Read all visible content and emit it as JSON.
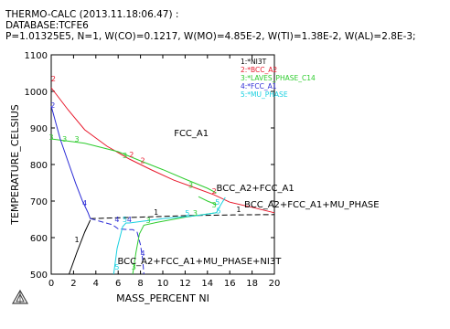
{
  "header": {
    "line1": "THERMO-CALC (2013.11.18:06.47) :",
    "line2": "DATABASE:TCFE6",
    "line3": "P=1.01325E5, N=1, W(CO)=0.1217, W(MO)=4.85E-2, W(TI)=1.38E-2, W(AL)=2.8E-3;"
  },
  "chart_data": {
    "type": "line",
    "xlabel": "MASS_PERCENT NI",
    "ylabel": "TEMPERATURE_CELSIUS",
    "xlim": [
      0,
      20
    ],
    "ylim": [
      500,
      1100
    ],
    "xticks": [
      0,
      2,
      4,
      6,
      8,
      10,
      12,
      14,
      16,
      18,
      20
    ],
    "yticks": [
      500,
      600,
      700,
      800,
      900,
      1000,
      1100
    ],
    "grid": false,
    "legend_position": "top-right",
    "legend": [
      {
        "label": "1:*NI3T",
        "color": "#000000"
      },
      {
        "label": "2:*BCC_A2",
        "color": "#e8192c"
      },
      {
        "label": "3:*LAVES_PHASE_C14",
        "color": "#2ecc2e"
      },
      {
        "label": "4:*FCC_A1",
        "color": "#2b2bd6"
      },
      {
        "label": "5:*MU_PHASE",
        "color": "#19d0e0"
      }
    ],
    "series": [
      {
        "name": "1:*NI3T",
        "color": "#000000",
        "dash": false,
        "points": [
          [
            1.6,
            500
          ],
          [
            2.3,
            560
          ],
          [
            3.0,
            615
          ],
          [
            3.5,
            648
          ]
        ]
      },
      {
        "name": "1:*NI3T",
        "color": "#000000",
        "dash": true,
        "points": [
          [
            3.5,
            652
          ],
          [
            8,
            656
          ],
          [
            12,
            660
          ],
          [
            16,
            662
          ],
          [
            20,
            663
          ]
        ]
      },
      {
        "name": "2:*BCC_A2",
        "color": "#e8192c",
        "dash": false,
        "points": [
          [
            0,
            1010
          ],
          [
            1.5,
            950
          ],
          [
            3,
            895
          ],
          [
            5,
            850
          ],
          [
            7,
            815
          ],
          [
            9,
            785
          ],
          [
            11,
            757
          ],
          [
            13,
            735
          ],
          [
            14.6,
            717
          ],
          [
            16,
            697
          ],
          [
            18,
            683
          ],
          [
            20,
            668
          ]
        ]
      },
      {
        "name": "3:*LAVES_PHASE_C14",
        "color": "#2ecc2e",
        "dash": false,
        "points": [
          [
            0,
            870
          ],
          [
            3,
            858
          ],
          [
            6,
            835
          ],
          [
            8,
            810
          ],
          [
            10,
            786
          ],
          [
            12,
            760
          ],
          [
            14,
            735
          ],
          [
            14.8,
            722
          ]
        ]
      },
      {
        "name": "3:*LAVES_PHASE_C14",
        "color": "#2ecc2e",
        "dash": false,
        "points": [
          [
            13.2,
            712
          ],
          [
            14.0,
            700
          ],
          [
            14.8,
            690
          ]
        ]
      },
      {
        "name": "3:*LAVES_PHASE_C14",
        "color": "#2ecc2e",
        "dash": false,
        "points": [
          [
            7.3,
            500
          ],
          [
            7.6,
            560
          ],
          [
            7.9,
            610
          ],
          [
            8.3,
            634
          ],
          [
            9.5,
            642
          ],
          [
            12,
            656
          ],
          [
            14.8,
            668
          ]
        ]
      },
      {
        "name": "4:*FCC_A1",
        "color": "#2b2bd6",
        "dash": false,
        "points": [
          [
            0,
            960
          ],
          [
            0.8,
            870
          ],
          [
            1.6,
            800
          ],
          [
            2.2,
            748
          ],
          [
            2.8,
            700
          ],
          [
            3.3,
            668
          ],
          [
            3.5,
            652
          ]
        ]
      },
      {
        "name": "4:*FCC_A1",
        "color": "#2b2bd6",
        "dash": true,
        "points": [
          [
            3.5,
            652
          ],
          [
            5.5,
            635
          ],
          [
            6,
            624
          ],
          [
            6.8,
            622
          ],
          [
            7.3,
            622
          ],
          [
            7.7,
            615
          ],
          [
            8,
            580
          ],
          [
            8.2,
            540
          ],
          [
            8.3,
            500
          ]
        ]
      },
      {
        "name": "5:*MU_PHASE",
        "color": "#19d0e0",
        "dash": false,
        "points": [
          [
            5.6,
            500
          ],
          [
            5.9,
            570
          ],
          [
            6.4,
            630
          ],
          [
            6.7,
            640
          ],
          [
            7.0,
            640
          ],
          [
            10,
            652
          ],
          [
            13,
            660
          ],
          [
            14.8,
            668
          ]
        ]
      },
      {
        "name": "5:*MU_PHASE",
        "color": "#19d0e0",
        "dash": false,
        "points": [
          [
            14.8,
            668
          ],
          [
            15.2,
            690
          ],
          [
            15.6,
            710
          ]
        ]
      }
    ],
    "curve_labels": [
      {
        "text": "2",
        "x": 0.2,
        "y": 1028,
        "color": "#e8192c"
      },
      {
        "text": "2",
        "x": 0.15,
        "y": 955,
        "color": "#2b2bd6"
      },
      {
        "text": "3",
        "x": 0.0,
        "y": 868,
        "color": "#2ecc2e"
      },
      {
        "text": "3",
        "x": 1.2,
        "y": 862,
        "color": "#2ecc2e"
      },
      {
        "text": "3",
        "x": 2.3,
        "y": 862,
        "color": "#2ecc2e"
      },
      {
        "text": "3",
        "x": 6.6,
        "y": 818,
        "color": "#2ecc2e"
      },
      {
        "text": "2",
        "x": 7.2,
        "y": 820,
        "color": "#e8192c"
      },
      {
        "text": "2",
        "x": 8.2,
        "y": 804,
        "color": "#e8192c"
      },
      {
        "text": "3",
        "x": 12.5,
        "y": 736,
        "color": "#2ecc2e"
      },
      {
        "text": "2",
        "x": 14.6,
        "y": 720,
        "color": "#e8192c"
      },
      {
        "text": "5",
        "x": 14.9,
        "y": 690,
        "color": "#19d0e0"
      },
      {
        "text": "3",
        "x": 14.6,
        "y": 683,
        "color": "#2ecc2e"
      },
      {
        "text": "1",
        "x": 16.8,
        "y": 670,
        "color": "#000000"
      },
      {
        "text": "5",
        "x": 15.0,
        "y": 666,
        "color": "#19d0e0"
      },
      {
        "text": "5",
        "x": 12.2,
        "y": 660,
        "color": "#19d0e0"
      },
      {
        "text": "3",
        "x": 12.9,
        "y": 660,
        "color": "#2ecc2e"
      },
      {
        "text": "1",
        "x": 9.4,
        "y": 662,
        "color": "#000000"
      },
      {
        "text": "4",
        "x": 3.0,
        "y": 688,
        "color": "#2b2bd6"
      },
      {
        "text": "4",
        "x": 5.9,
        "y": 642,
        "color": "#2b2bd6"
      },
      {
        "text": "4",
        "x": 7.0,
        "y": 642,
        "color": "#2b2bd6"
      },
      {
        "text": "5",
        "x": 6.6,
        "y": 642,
        "color": "#19d0e0"
      },
      {
        "text": "3",
        "x": 8.7,
        "y": 640,
        "color": "#2ecc2e"
      },
      {
        "text": "1",
        "x": 2.3,
        "y": 588,
        "color": "#000000"
      },
      {
        "text": "4",
        "x": 8.2,
        "y": 550,
        "color": "#2b2bd6"
      },
      {
        "text": "5",
        "x": 5.9,
        "y": 512,
        "color": "#19d0e0"
      },
      {
        "text": "3",
        "x": 7.4,
        "y": 512,
        "color": "#2ecc2e"
      }
    ],
    "annotations": [
      {
        "text": "FCC_A1",
        "x": 11.0,
        "y": 877
      },
      {
        "text": "BCC_A2+FCC_A1",
        "x": 14.8,
        "y": 728
      },
      {
        "text": "BCC_A2+FCC_A1+MU_PHASE",
        "x": 17.3,
        "y": 682
      },
      {
        "text": "BCC_A2+FCC_A1+MU_PHASE+NI3T",
        "x": 20.6,
        "y": 528
      }
    ]
  }
}
